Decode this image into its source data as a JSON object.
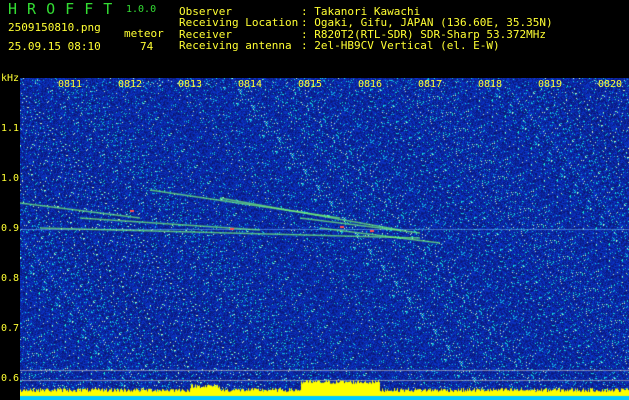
{
  "app": {
    "title": "H R O F F T",
    "version": "1.0.0"
  },
  "file": {
    "name": "2509150810.png",
    "datetime": "25.09.15 08:10"
  },
  "meteor": {
    "label": "meteor",
    "count": "74"
  },
  "info": [
    {
      "label": "Observer",
      "value": ": Takanori Kawachi"
    },
    {
      "label": "Receiving Location",
      "value": ": Ogaki, Gifu, JAPAN (136.60E, 35.35N)"
    },
    {
      "label": "Receiver",
      "value": ": R820T2(RTL-SDR) SDR-Sharp 53.372MHz"
    },
    {
      "label": "Receiving antenna",
      "value": ": 2el-HB9CV Vertical (el. E-W)"
    }
  ],
  "spectrogram": {
    "y_unit": "kHz",
    "y_ticks": [
      "1.1",
      "1.0",
      "0.9",
      "0.8",
      "0.7",
      "0.6"
    ],
    "x_ticks": [
      "0811",
      "0812",
      "0813",
      "0814",
      "0815",
      "0816",
      "0817",
      "0818",
      "0819",
      "0820"
    ],
    "colors": {
      "background": "#0a1a9a",
      "text": "#ffff33",
      "title": "#33dd33",
      "level": "#ffff00",
      "base": "#00ccff"
    }
  }
}
